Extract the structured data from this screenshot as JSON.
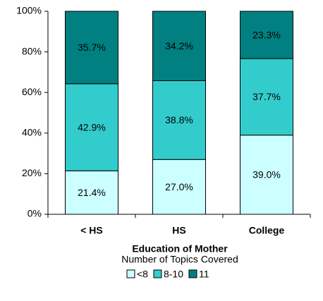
{
  "chart_data": {
    "type": "stacked_bar",
    "x_label": "Education of Mother",
    "legend_title": "Number of Topics Covered",
    "categories": [
      "< HS",
      "HS",
      "College"
    ],
    "series": [
      {
        "name": "<8",
        "color": "#ccffff",
        "values": [
          21.4,
          27.0,
          39.0
        ],
        "value_labels": [
          "21.4%",
          "27.0%",
          "39.0%"
        ]
      },
      {
        "name": "8-10",
        "color": "#33cccc",
        "values": [
          42.9,
          38.8,
          37.7
        ],
        "value_labels": [
          "42.9%",
          "38.8%",
          "37.7%"
        ]
      },
      {
        "name": "11",
        "color": "#008080",
        "values": [
          35.7,
          34.2,
          23.3
        ],
        "value_labels": [
          "35.7%",
          "34.2%",
          "23.3%"
        ]
      }
    ],
    "ylim": [
      0,
      100
    ],
    "yticks": [
      {
        "value": 0,
        "label": "0%"
      },
      {
        "value": 20,
        "label": "20%"
      },
      {
        "value": 40,
        "label": "40%"
      },
      {
        "value": 60,
        "label": "60%"
      },
      {
        "value": 80,
        "label": "80%"
      },
      {
        "value": 100,
        "label": "100%"
      }
    ],
    "legend_position": "bottom"
  }
}
